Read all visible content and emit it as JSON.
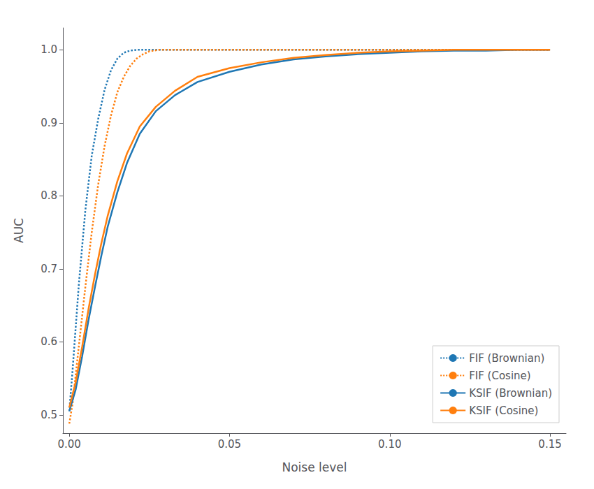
{
  "chart_data": {
    "type": "line",
    "xlabel": "Noise level",
    "ylabel": "AUC",
    "xlim": [
      -0.002,
      0.155
    ],
    "ylim": [
      0.475,
      1.03
    ],
    "xticks": [
      {
        "value": 0.0,
        "label": "0.00"
      },
      {
        "value": 0.05,
        "label": "0.05"
      },
      {
        "value": 0.1,
        "label": "0.10"
      },
      {
        "value": 0.15,
        "label": "0.15"
      }
    ],
    "yticks": [
      0.5,
      0.6,
      0.7,
      0.8,
      0.9,
      {
        "value": 1.0,
        "label": "1.0"
      }
    ],
    "grid": false,
    "legend": "lower right",
    "series": [
      {
        "name": "FIF (Brownian)",
        "color": "#1f77b4",
        "line_style": "dotted",
        "x": [
          0.0,
          0.001,
          0.003,
          0.005,
          0.007,
          0.009,
          0.011,
          0.013,
          0.015,
          0.017,
          0.019,
          0.021,
          0.025,
          0.15
        ],
        "values": [
          0.505,
          0.56,
          0.68,
          0.78,
          0.855,
          0.905,
          0.945,
          0.972,
          0.988,
          0.996,
          0.999,
          1.0,
          1.0,
          1.0
        ]
      },
      {
        "name": "FIF (Cosine)",
        "color": "#ff7f0e",
        "line_style": "dotted",
        "x": [
          0.0,
          0.001,
          0.003,
          0.005,
          0.007,
          0.009,
          0.011,
          0.013,
          0.015,
          0.017,
          0.019,
          0.021,
          0.023,
          0.025,
          0.028,
          0.032,
          0.036,
          0.04,
          0.15
        ],
        "values": [
          0.488,
          0.515,
          0.595,
          0.675,
          0.75,
          0.815,
          0.868,
          0.91,
          0.942,
          0.963,
          0.978,
          0.988,
          0.994,
          0.998,
          1.0,
          1.0,
          1.0,
          1.0,
          1.0
        ]
      },
      {
        "name": "KSIF (Brownian)",
        "color": "#1f77b4",
        "line_style": "solid",
        "x": [
          0.0,
          0.002,
          0.004,
          0.006,
          0.008,
          0.01,
          0.012,
          0.015,
          0.018,
          0.022,
          0.027,
          0.033,
          0.04,
          0.05,
          0.06,
          0.07,
          0.08,
          0.09,
          0.1,
          0.11,
          0.12,
          0.13,
          0.14,
          0.15
        ],
        "values": [
          0.505,
          0.535,
          0.58,
          0.63,
          0.675,
          0.718,
          0.758,
          0.805,
          0.845,
          0.885,
          0.916,
          0.938,
          0.956,
          0.97,
          0.98,
          0.987,
          0.991,
          0.994,
          0.996,
          0.998,
          0.999,
          0.999,
          1.0,
          1.0
        ]
      },
      {
        "name": "KSIF (Cosine)",
        "color": "#ff7f0e",
        "line_style": "solid",
        "x": [
          0.0,
          0.002,
          0.004,
          0.006,
          0.008,
          0.01,
          0.012,
          0.015,
          0.018,
          0.022,
          0.027,
          0.033,
          0.04,
          0.05,
          0.06,
          0.07,
          0.08,
          0.09,
          0.1,
          0.11,
          0.12,
          0.13,
          0.14,
          0.15
        ],
        "values": [
          0.51,
          0.545,
          0.593,
          0.645,
          0.692,
          0.735,
          0.773,
          0.82,
          0.858,
          0.895,
          0.922,
          0.944,
          0.963,
          0.975,
          0.983,
          0.989,
          0.993,
          0.996,
          0.998,
          0.999,
          1.0,
          1.0,
          1.0,
          1.0
        ]
      }
    ]
  }
}
